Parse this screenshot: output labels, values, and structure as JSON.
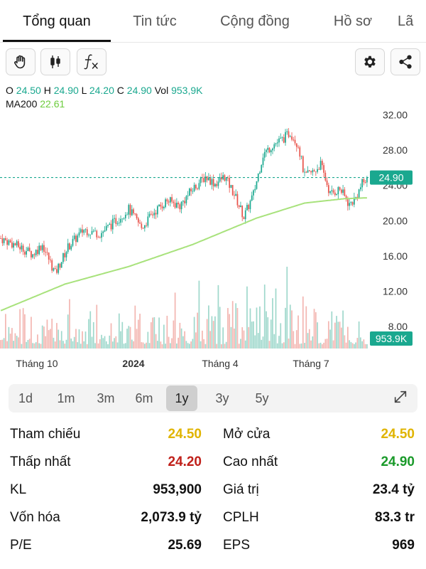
{
  "tabs": [
    {
      "label": "Tổng quan",
      "active": true
    },
    {
      "label": "Tin tức",
      "active": false
    },
    {
      "label": "Cộng đồng",
      "active": false
    },
    {
      "label": "Hồ sơ",
      "active": false
    },
    {
      "label": "Lã",
      "active": false
    }
  ],
  "toolbar": {
    "tools": [
      "hand-icon",
      "candlestick-icon",
      "function-icon"
    ],
    "right": [
      "gear-icon",
      "share-icon"
    ],
    "fx_label": "fx"
  },
  "ohlc": {
    "o_label": "O",
    "o_value": "24.50",
    "h_label": "H",
    "h_value": "24.90",
    "l_label": "L",
    "l_value": "24.20",
    "c_label": "C",
    "c_value": "24.90",
    "vol_label": "Vol",
    "vol_value": "953,9K",
    "ma_label": "MA200",
    "ma_value": "22.61"
  },
  "colors": {
    "up": "#1aa88f",
    "down": "#e8524a",
    "ma": "#a8e27c",
    "price_badge": "#1aa88f",
    "yellow": "#e0b400",
    "red": "#c0201a",
    "green": "#1a9a2a"
  },
  "chart_data": {
    "type": "candlestick",
    "y_ticks": [
      "32.00",
      "28.00",
      "24.00",
      "20.00",
      "16.00",
      "12.00",
      "8.00"
    ],
    "y_tick_values": [
      32,
      28,
      24,
      20,
      16,
      12,
      8
    ],
    "ylim": [
      5.5,
      33.5
    ],
    "x_ticks": [
      "Tháng 10",
      "2024",
      "Tháng 4",
      "Tháng 7"
    ],
    "x_tick_bold": [
      false,
      true,
      false,
      false
    ],
    "current_price_label": "24.90",
    "current_price": 24.9,
    "volume_label": "953.9K",
    "price_keypoints": [
      [
        0,
        18.0
      ],
      [
        12,
        17.0
      ],
      [
        20,
        16.2
      ],
      [
        26,
        17.3
      ],
      [
        34,
        14.0
      ],
      [
        42,
        17.0
      ],
      [
        52,
        19.0
      ],
      [
        62,
        18.5
      ],
      [
        72,
        20.0
      ],
      [
        80,
        21.3
      ],
      [
        88,
        19.2
      ],
      [
        96,
        21.0
      ],
      [
        104,
        22.3
      ],
      [
        112,
        21.7
      ],
      [
        120,
        23.6
      ],
      [
        128,
        25.0
      ],
      [
        134,
        24.2
      ],
      [
        140,
        25.0
      ],
      [
        146,
        23.0
      ],
      [
        152,
        20.4
      ],
      [
        158,
        23.0
      ],
      [
        164,
        27.5
      ],
      [
        170,
        28.6
      ],
      [
        176,
        29.2
      ],
      [
        181,
        30.0
      ],
      [
        186,
        28.6
      ],
      [
        190,
        25.0
      ],
      [
        196,
        25.6
      ],
      [
        200,
        26.4
      ],
      [
        206,
        23.0
      ],
      [
        212,
        23.6
      ],
      [
        218,
        21.8
      ],
      [
        222,
        22.6
      ],
      [
        226,
        24.2
      ],
      [
        230,
        24.9
      ]
    ],
    "ma_keypoints": [
      [
        0,
        9.8
      ],
      [
        40,
        12.8
      ],
      [
        80,
        14.8
      ],
      [
        120,
        17.3
      ],
      [
        160,
        20.3
      ],
      [
        190,
        22.0
      ],
      [
        215,
        22.5
      ],
      [
        230,
        22.6
      ]
    ],
    "candle_count": 230
  },
  "range": {
    "options": [
      "1d",
      "1m",
      "3m",
      "6m",
      "1y",
      "3y",
      "5y"
    ],
    "selected": "1y"
  },
  "stats": {
    "rows": [
      {
        "l_label": "Tham chiếu",
        "l_value": "24.50",
        "l_color": "yellow",
        "r_label": "Mở cửa",
        "r_value": "24.50",
        "r_color": "yellow"
      },
      {
        "l_label": "Thấp nhất",
        "l_value": "24.20",
        "l_color": "red",
        "r_label": "Cao nhất",
        "r_value": "24.90",
        "r_color": "green"
      },
      {
        "l_label": "KL",
        "l_value": "953,900",
        "l_color": "",
        "r_label": "Giá trị",
        "r_value": "23.4 tỷ",
        "r_color": ""
      },
      {
        "l_label": "Vốn hóa",
        "l_value": "2,073.9 tỷ",
        "l_color": "",
        "r_label": "CPLH",
        "r_value": "83.3 tr",
        "r_color": ""
      },
      {
        "l_label": "P/E",
        "l_value": "25.69",
        "l_color": "",
        "r_label": "EPS",
        "r_value": "969",
        "r_color": ""
      }
    ]
  }
}
